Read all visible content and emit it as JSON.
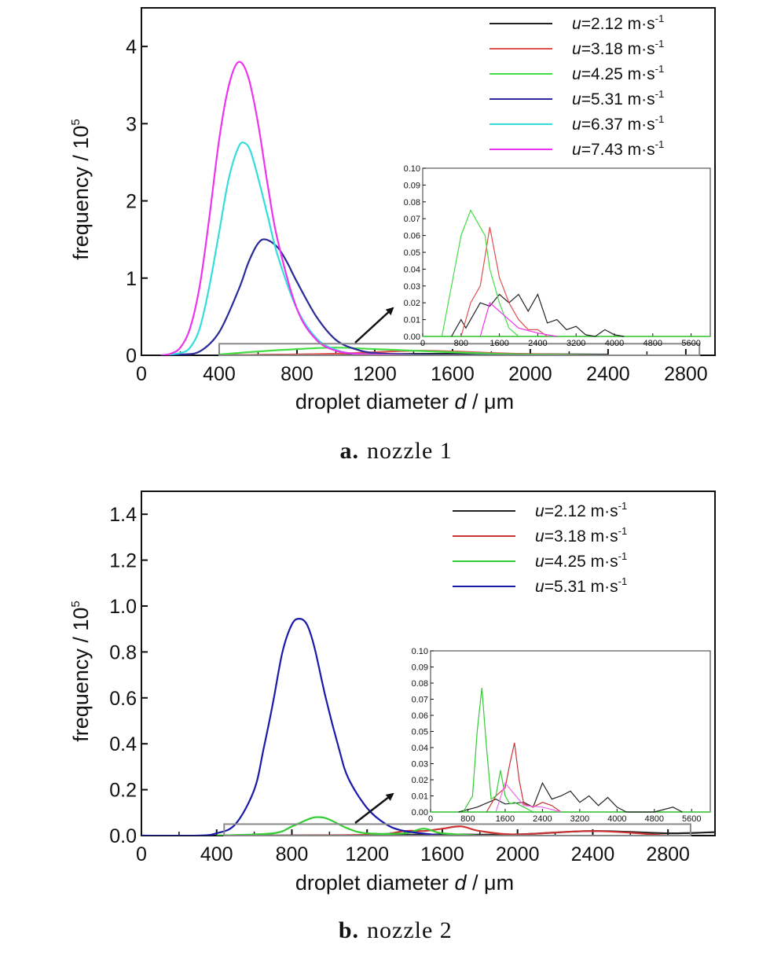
{
  "chart_data": [
    {
      "type": "line",
      "id": "a",
      "caption_label": "a.",
      "caption_text": "nozzle 1",
      "xlabel_pre": "droplet diameter ",
      "xlabel_var": "d",
      "xlabel_post": " / μm",
      "ylabel": "frequency / 10",
      "ylabel_exp": "5",
      "xlim": [
        0,
        2950
      ],
      "ylim": [
        0,
        4.5
      ],
      "xticks": [
        0,
        400,
        800,
        1200,
        1600,
        2000,
        2400,
        2800
      ],
      "yticks": [
        0,
        1,
        2,
        3,
        4
      ],
      "series": [
        {
          "name": "u=2.12 m·s-1",
          "u_label": "u",
          "value_label": "=2.12 m·s",
          "exp": "-1",
          "color": "#222222",
          "x": [
            400,
            800,
            1200,
            1600,
            2000,
            2400
          ],
          "y": [
            0,
            0.01,
            0.015,
            0.02,
            0.015,
            0.01
          ]
        },
        {
          "name": "u=3.18 m·s-1",
          "u_label": "u",
          "value_label": "=3.18 m·s",
          "exp": "-1",
          "color": "#e05050",
          "x": [
            400,
            800,
            1000,
            1200,
            1400,
            1600,
            1800,
            2000,
            2400
          ],
          "y": [
            0,
            0.01,
            0.02,
            0.04,
            0.06,
            0.05,
            0.03,
            0.015,
            0
          ]
        },
        {
          "name": "u=4.25 m·s-1",
          "u_label": "u",
          "value_label": "=4.25 m·s",
          "exp": "-1",
          "color": "#44dd44",
          "x": [
            400,
            600,
            800,
            1000,
            1200,
            1400,
            1600,
            1800,
            2000,
            2400
          ],
          "y": [
            0.01,
            0.05,
            0.08,
            0.1,
            0.08,
            0.06,
            0.04,
            0.02,
            0.01,
            0
          ]
        },
        {
          "name": "u=5.31 m·s-1",
          "u_label": "u",
          "value_label": "=5.31 m·s",
          "exp": "-1",
          "color": "#2a2a9a",
          "x": [
            100,
            200,
            300,
            400,
            500,
            550,
            600,
            640,
            700,
            750,
            800,
            900,
            1000,
            1100,
            1200,
            1400,
            1600,
            2000,
            2400
          ],
          "y": [
            0,
            0.01,
            0.05,
            0.3,
            0.85,
            1.2,
            1.45,
            1.5,
            1.4,
            1.2,
            0.95,
            0.5,
            0.2,
            0.08,
            0.03,
            0.01,
            0.005,
            0,
            0
          ]
        },
        {
          "name": "u=6.37 m·s-1",
          "u_label": "u",
          "value_label": "=6.37 m·s",
          "exp": "-1",
          "color": "#33dddd",
          "x": [
            100,
            200,
            250,
            300,
            350,
            400,
            450,
            500,
            530,
            560,
            600,
            650,
            700,
            800,
            900,
            1000,
            1100,
            1200,
            1400
          ],
          "y": [
            0,
            0.03,
            0.1,
            0.35,
            0.9,
            1.6,
            2.3,
            2.7,
            2.75,
            2.65,
            2.3,
            1.8,
            1.3,
            0.6,
            0.22,
            0.07,
            0.02,
            0.01,
            0
          ]
        },
        {
          "name": "u=7.43 m·s-1",
          "u_label": "u",
          "value_label": "=7.43 m·s",
          "exp": "-1",
          "color": "#ee33ee",
          "x": [
            100,
            150,
            200,
            250,
            300,
            350,
            400,
            450,
            500,
            550,
            600,
            650,
            700,
            800,
            900,
            1000,
            1100,
            1200,
            1400
          ],
          "y": [
            0,
            0.02,
            0.1,
            0.35,
            0.9,
            1.8,
            2.8,
            3.5,
            3.8,
            3.6,
            3.0,
            2.2,
            1.5,
            0.6,
            0.2,
            0.06,
            0.02,
            0.01,
            0
          ]
        }
      ],
      "inset": {
        "xlim": [
          0,
          6000
        ],
        "ylim": [
          0,
          0.1
        ],
        "xticks": [
          0,
          800,
          1600,
          2400,
          3200,
          4000,
          4800,
          5600
        ],
        "yticks": [
          0.0,
          0.01,
          0.02,
          0.03,
          0.04,
          0.05,
          0.06,
          0.07,
          0.08,
          0.09,
          0.1
        ],
        "yticklabels": [
          "0.00",
          "0.01",
          "0.02",
          "0.03",
          "0.04",
          "0.05",
          "0.06",
          "0.07",
          "0.08",
          "0.09",
          "0.10"
        ],
        "series": [
          {
            "color": "#222222",
            "x": [
              600,
              800,
              900,
              1000,
              1200,
              1400,
              1600,
              1800,
              2000,
              2200,
              2400,
              2600,
              2800,
              3000,
              3200,
              3400,
              3600,
              3800,
              4000,
              4200
            ],
            "y": [
              0,
              0.01,
              0.005,
              0.01,
              0.02,
              0.018,
              0.025,
              0.02,
              0.025,
              0.015,
              0.025,
              0.008,
              0.01,
              0.004,
              0.006,
              0.001,
              0.0,
              0.004,
              0.001,
              0
            ]
          },
          {
            "color": "#e05050",
            "x": [
              800,
              1000,
              1200,
              1400,
              1600,
              1800,
              2000,
              2200,
              2400,
              2600
            ],
            "y": [
              0,
              0.02,
              0.03,
              0.065,
              0.035,
              0.02,
              0.01,
              0.004,
              0.004,
              0
            ]
          },
          {
            "color": "#44dd44",
            "x": [
              400,
              600,
              800,
              1000,
              1100,
              1200,
              1300,
              1400,
              1600,
              1800,
              2000
            ],
            "y": [
              0,
              0.03,
              0.06,
              0.075,
              0.07,
              0.065,
              0.06,
              0.04,
              0.02,
              0.005,
              0
            ]
          },
          {
            "color": "#ee33ee",
            "x": [
              1200,
              1400,
              1600,
              2000,
              2400,
              2800
            ],
            "y": [
              0,
              0.02,
              0.015,
              0.005,
              0.002,
              0
            ]
          }
        ]
      }
    },
    {
      "type": "line",
      "id": "b",
      "caption_label": "b.",
      "caption_text": "nozzle 2",
      "xlabel_pre": "droplet diameter ",
      "xlabel_var": "d",
      "xlabel_post": " / μm",
      "ylabel": "frequency / 10",
      "ylabel_exp": "5",
      "xlim": [
        0,
        3050
      ],
      "ylim": [
        0,
        1.5
      ],
      "xticks": [
        0,
        400,
        800,
        1200,
        1600,
        2000,
        2400,
        2800
      ],
      "yticks": [
        0.0,
        0.2,
        0.4,
        0.6,
        0.8,
        1.0,
        1.2,
        1.4
      ],
      "yticklabels": [
        "0.0",
        "0.2",
        "0.4",
        "0.6",
        "0.8",
        "1.0",
        "1.2",
        "1.4"
      ],
      "series": [
        {
          "name": "u=2.12 m·s-1",
          "u_label": "u",
          "value_label": "=2.12 m·s",
          "exp": "-1",
          "color": "#222222",
          "x": [
            400,
            1200,
            1600,
            2000,
            2400,
            2800,
            3050
          ],
          "y": [
            0,
            0.002,
            0.005,
            0.005,
            0.02,
            0.01,
            0.015
          ]
        },
        {
          "name": "u=3.18 m·s-1",
          "u_label": "u",
          "value_label": "=3.18 m·s",
          "exp": "-1",
          "color": "#cc3333",
          "x": [
            400,
            1200,
            1400,
            1500,
            1600,
            1700,
            1800,
            2000,
            2400,
            2800
          ],
          "y": [
            0,
            0.003,
            0.02,
            0.02,
            0.03,
            0.04,
            0.02,
            0.005,
            0.02,
            0
          ]
        },
        {
          "name": "u=4.25 m·s-1",
          "u_label": "u",
          "value_label": "=4.25 m·s",
          "exp": "-1",
          "color": "#33cc33",
          "x": [
            400,
            700,
            800,
            900,
            950,
            1000,
            1100,
            1200,
            1400,
            1500,
            1600,
            1800
          ],
          "y": [
            0,
            0.01,
            0.04,
            0.075,
            0.08,
            0.07,
            0.03,
            0.01,
            0.01,
            0.03,
            0.01,
            0
          ]
        },
        {
          "name": "u=5.31 m·s-1",
          "u_label": "u",
          "value_label": "=5.31 m·s",
          "exp": "-1",
          "color": "#1a1aaa",
          "x": [
            0,
            300,
            400,
            500,
            600,
            650,
            700,
            750,
            800,
            840,
            880,
            920,
            980,
            1050,
            1100,
            1200,
            1300,
            1400,
            1600
          ],
          "y": [
            0,
            0,
            0.01,
            0.05,
            0.2,
            0.38,
            0.58,
            0.8,
            0.92,
            0.945,
            0.92,
            0.82,
            0.6,
            0.38,
            0.25,
            0.12,
            0.05,
            0.02,
            0
          ]
        }
      ],
      "inset": {
        "xlim": [
          0,
          6000
        ],
        "ylim": [
          0,
          0.1
        ],
        "xticks": [
          0,
          800,
          1600,
          2400,
          3200,
          4000,
          4800,
          5600
        ],
        "yticks": [
          0.0,
          0.01,
          0.02,
          0.03,
          0.04,
          0.05,
          0.06,
          0.07,
          0.08,
          0.09,
          0.1
        ],
        "yticklabels": [
          "0.00",
          "0.01",
          "0.02",
          "0.03",
          "0.04",
          "0.05",
          "0.06",
          "0.07",
          "0.08",
          "0.09",
          "0.10"
        ],
        "series": [
          {
            "color": "#222222",
            "x": [
              600,
              1000,
              1400,
              1600,
              2000,
              2200,
              2400,
              2600,
              2800,
              3000,
              3200,
              3400,
              3600,
              3800,
              4000,
              4200,
              4800,
              5200,
              5400
            ],
            "y": [
              0,
              0.003,
              0.008,
              0.005,
              0.006,
              0.003,
              0.018,
              0.008,
              0.01,
              0.013,
              0.006,
              0.01,
              0.004,
              0.009,
              0.003,
              0,
              0,
              0.003,
              0
            ]
          },
          {
            "color": "#cc3333",
            "x": [
              1200,
              1400,
              1600,
              1700,
              1800,
              1900,
              2000,
              2200,
              2400,
              2600,
              2800
            ],
            "y": [
              0,
              0.01,
              0.015,
              0.03,
              0.043,
              0.02,
              0.005,
              0.003,
              0.006,
              0.004,
              0
            ]
          },
          {
            "color": "#33cc33",
            "x": [
              700,
              900,
              1000,
              1100,
              1200,
              1300,
              1400,
              1500,
              1600,
              1700,
              1800,
              2000,
              2200
            ],
            "y": [
              0,
              0.01,
              0.05,
              0.077,
              0.04,
              0.008,
              0.01,
              0.026,
              0.01,
              0.005,
              0.006,
              0.003,
              0
            ]
          },
          {
            "color": "#ee66ee",
            "x": [
              1400,
              1600,
              2000,
              2400,
              2800
            ],
            "y": [
              0,
              0.018,
              0.004,
              0.003,
              0
            ]
          }
        ]
      }
    }
  ]
}
